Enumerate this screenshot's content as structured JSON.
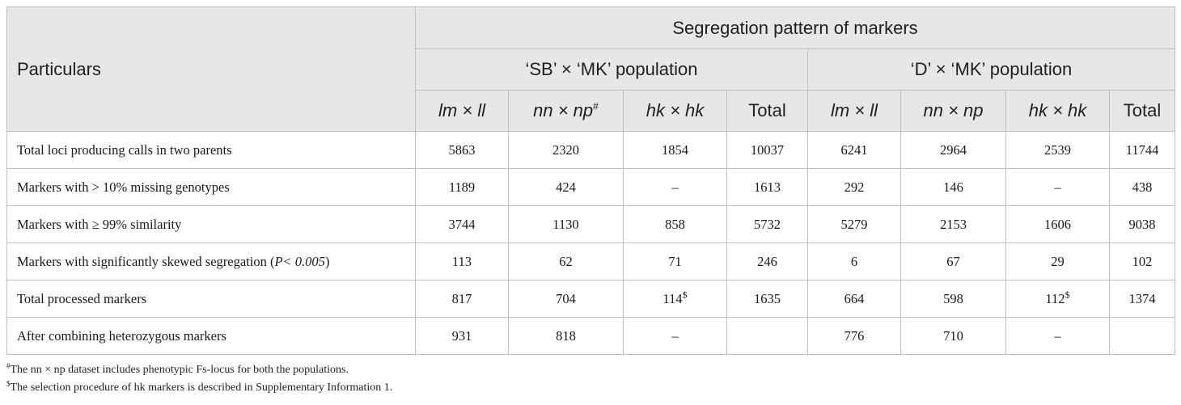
{
  "header": {
    "particulars": "Particulars",
    "group_title": "Segregation pattern of markers",
    "pop1": "‘SB’ × ‘MK’ population",
    "pop2": "‘D’ × ‘MK’ population",
    "sub": [
      {
        "main": "lm × ll",
        "sup": "",
        "italic": true
      },
      {
        "main": "nn × np",
        "sup": "#",
        "italic": true
      },
      {
        "main": "hk × hk",
        "sup": "",
        "italic": true
      },
      {
        "main": "Total",
        "sup": "",
        "italic": false
      },
      {
        "main": "lm × ll",
        "sup": "",
        "italic": true
      },
      {
        "main": "nn × np",
        "sup": "",
        "italic": true
      },
      {
        "main": "hk × hk",
        "sup": "",
        "italic": true
      },
      {
        "main": "Total",
        "sup": "",
        "italic": false
      }
    ]
  },
  "rows": [
    {
      "label": "Total loci producing calls in two parents",
      "label_suffix": "",
      "values": [
        "5863",
        "2320",
        "1854",
        "10037",
        "6241",
        "2964",
        "2539",
        "11744"
      ],
      "sups": [
        "",
        "",
        "",
        "",
        "",
        "",
        "",
        ""
      ]
    },
    {
      "label": "Markers with > 10% missing genotypes",
      "label_suffix": "",
      "values": [
        "1189",
        "424",
        "–",
        "1613",
        "292",
        "146",
        "–",
        "438"
      ],
      "sups": [
        "",
        "",
        "",
        "",
        "",
        "",
        "",
        ""
      ]
    },
    {
      "label": "Markers with ≥ 99% similarity",
      "label_suffix": "",
      "values": [
        "3744",
        "1130",
        "858",
        "5732",
        "5279",
        "2153",
        "1606",
        "9038"
      ],
      "sups": [
        "",
        "",
        "",
        "",
        "",
        "",
        "",
        ""
      ]
    },
    {
      "label": "Markers with significantly skewed segregation (",
      "label_italic": "P< 0.005",
      "label_suffix": ")",
      "values": [
        "113",
        "62",
        "71",
        "246",
        "6",
        "67",
        "29",
        "102"
      ],
      "sups": [
        "",
        "",
        "",
        "",
        "",
        "",
        "",
        ""
      ]
    },
    {
      "label": "Total processed markers",
      "label_suffix": "",
      "values": [
        "817",
        "704",
        "114",
        "1635",
        "664",
        "598",
        "112",
        "1374"
      ],
      "sups": [
        "",
        "",
        "$",
        "",
        "",
        "",
        "$",
        ""
      ]
    },
    {
      "label": "After combining heterozygous markers",
      "label_suffix": "",
      "values": [
        "931",
        "818",
        "–",
        "",
        "776",
        "710",
        "–",
        ""
      ],
      "sups": [
        "",
        "",
        "",
        "",
        "",
        "",
        "",
        ""
      ]
    }
  ],
  "footnotes": [
    {
      "mark": "#",
      "text": "The nn × np dataset includes phenotypic Fs-locus for both the populations."
    },
    {
      "mark": "$",
      "text": "The selection procedure of hk markers is described in Supplementary Information 1."
    }
  ]
}
